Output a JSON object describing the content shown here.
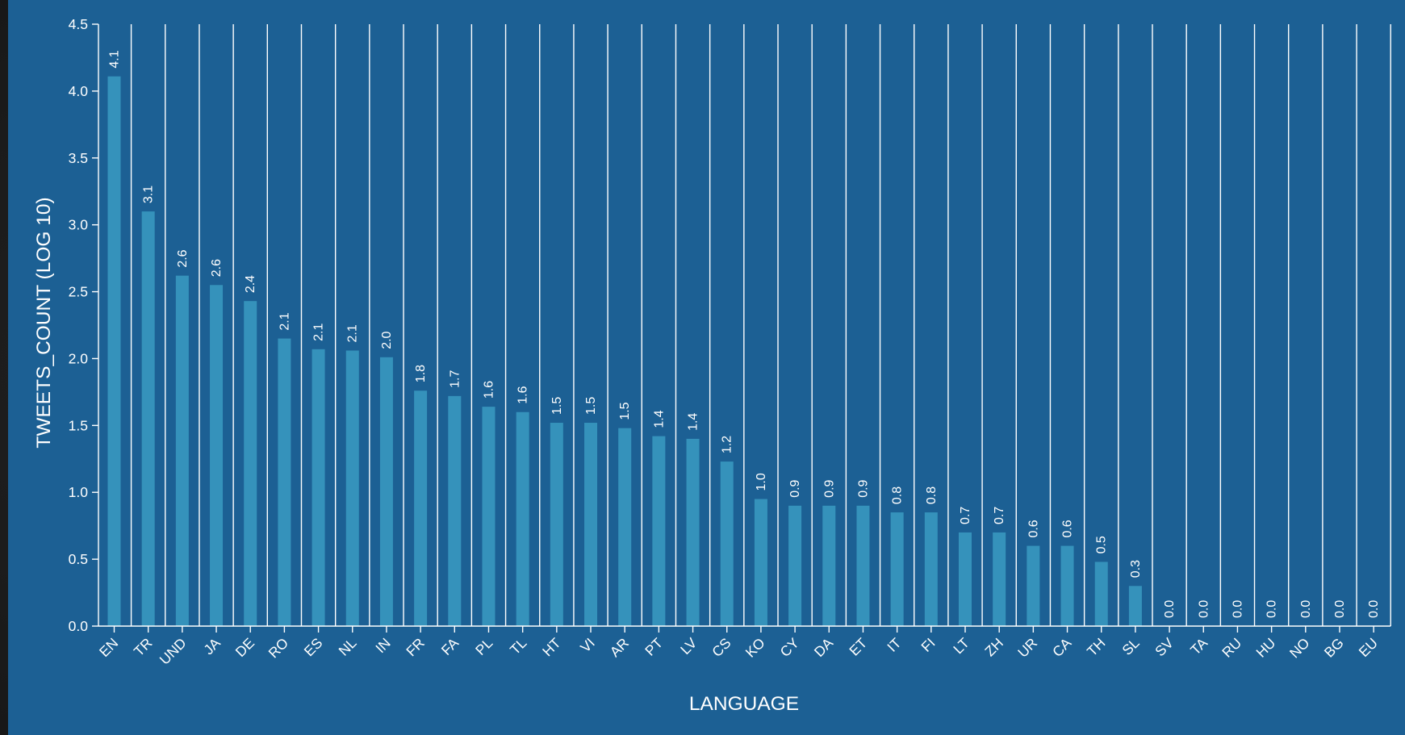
{
  "chart_data": {
    "type": "bar",
    "title": "",
    "xlabel": "LANGUAGE",
    "ylabel": "TWEETS_COUNT (LOG 10)",
    "ylim": [
      0,
      4.5
    ],
    "yticks": [
      "0.0",
      "0.5",
      "1.0",
      "1.5",
      "2.0",
      "2.5",
      "3.0",
      "3.5",
      "4.0",
      "4.5"
    ],
    "grid": "vertical",
    "categories": [
      "EN",
      "TR",
      "UND",
      "JA",
      "DE",
      "RO",
      "ES",
      "NL",
      "IN",
      "FR",
      "FA",
      "PL",
      "TL",
      "HT",
      "VI",
      "AR",
      "PT",
      "LV",
      "CS",
      "KO",
      "CY",
      "DA",
      "ET",
      "IT",
      "FI",
      "LT",
      "ZH",
      "UR",
      "CA",
      "TH",
      "SL",
      "SV",
      "TA",
      "RU",
      "HU",
      "NO",
      "BG",
      "EU"
    ],
    "values": [
      4.11,
      3.1,
      2.62,
      2.55,
      2.43,
      2.15,
      2.07,
      2.06,
      2.01,
      1.76,
      1.72,
      1.64,
      1.6,
      1.52,
      1.52,
      1.48,
      1.42,
      1.4,
      1.23,
      0.95,
      0.9,
      0.9,
      0.9,
      0.85,
      0.85,
      0.7,
      0.7,
      0.6,
      0.6,
      0.48,
      0.3,
      0.0,
      0.0,
      0.0,
      0.0,
      0.0,
      0.0,
      0.0
    ],
    "labels": [
      "4.1",
      "3.1",
      "2.6",
      "2.6",
      "2.4",
      "2.1",
      "2.1",
      "2.1",
      "2.0",
      "1.8",
      "1.7",
      "1.6",
      "1.6",
      "1.5",
      "1.5",
      "1.5",
      "1.4",
      "1.4",
      "1.2",
      "1.0",
      "0.9",
      "0.9",
      "0.9",
      "0.8",
      "0.8",
      "0.7",
      "0.7",
      "0.6",
      "0.6",
      "0.5",
      "0.3",
      "0.0",
      "0.0",
      "0.0",
      "0.0",
      "0.0",
      "0.0",
      "0.0"
    ]
  },
  "colors": {
    "panel": "#1c6094",
    "bar": "#3592bb",
    "grid": "#ffffff",
    "text": "#ffffff"
  }
}
